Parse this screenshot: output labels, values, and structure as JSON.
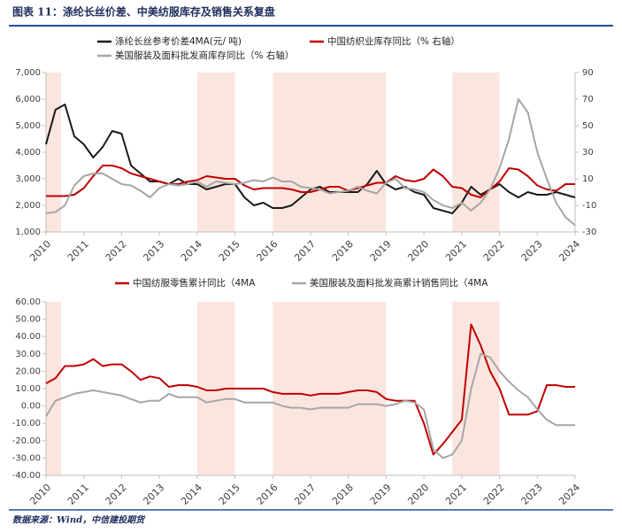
{
  "header": {
    "title": "图表 11：涤纶长丝价差、中美纺服库存及销售关系复盘"
  },
  "footer": {
    "source": "数据来源：Wind，中信建投期货"
  },
  "chart_data": [
    {
      "type": "line",
      "x": [
        2010,
        2010.25,
        2010.5,
        2010.75,
        2011,
        2011.25,
        2011.5,
        2011.75,
        2012,
        2012.25,
        2012.5,
        2012.75,
        2013,
        2013.25,
        2013.5,
        2013.75,
        2014,
        2014.25,
        2014.5,
        2014.75,
        2015,
        2015.25,
        2015.5,
        2015.75,
        2016,
        2016.25,
        2016.5,
        2016.75,
        2017,
        2017.25,
        2017.5,
        2017.75,
        2018,
        2018.25,
        2018.5,
        2018.75,
        2019,
        2019.25,
        2019.5,
        2019.75,
        2020,
        2020.25,
        2020.5,
        2020.75,
        2021,
        2021.25,
        2021.5,
        2021.75,
        2022,
        2022.25,
        2022.5,
        2022.75,
        2023,
        2023.25,
        2023.5,
        2023.75,
        2024
      ],
      "xlim": [
        2010,
        2024
      ],
      "xticks": [
        2010,
        2011,
        2012,
        2013,
        2014,
        2015,
        2016,
        2017,
        2018,
        2019,
        2020,
        2021,
        2022,
        2023,
        2024
      ],
      "ylim": [
        1000,
        7000
      ],
      "yticks": [
        {
          "value": 1000,
          "label": "1,000"
        },
        {
          "value": 2000,
          "label": "2,000"
        },
        {
          "value": 3000,
          "label": "3,000"
        },
        {
          "value": 4000,
          "label": "4,000"
        },
        {
          "value": 5000,
          "label": "5,000"
        },
        {
          "value": 6000,
          "label": "6,000"
        },
        {
          "value": 7000,
          "label": "7,000"
        }
      ],
      "y2lim": [
        -30,
        90
      ],
      "y2ticks": [
        -30,
        -10,
        10,
        30,
        50,
        70,
        90
      ],
      "shaded_ranges": [
        [
          2010,
          2010.4
        ],
        [
          2014,
          2015
        ],
        [
          2016,
          2019
        ],
        [
          2020.75,
          2022
        ]
      ],
      "shade_color": "#fbe6df",
      "series": [
        {
          "name": "涤纶长丝参考价差4MA(元/ 吨)",
          "color": "#1a1a1a",
          "values": [
            4300,
            5600,
            5800,
            4600,
            4300,
            3800,
            4200,
            4800,
            4700,
            3500,
            3200,
            2900,
            2900,
            2800,
            3000,
            2800,
            2800,
            2600,
            2700,
            2800,
            2800,
            2300,
            2000,
            2100,
            1900,
            1900,
            2000,
            2300,
            2600,
            2700,
            2500,
            2500,
            2500,
            2500,
            2800,
            3300,
            2800,
            2600,
            2700,
            2500,
            2400,
            1900,
            1800,
            1700,
            2100,
            2700,
            2400,
            2600,
            2800,
            2500,
            2300,
            2500,
            2400,
            2400,
            2500,
            2400,
            2300
          ]
        },
        {
          "name": "中国纺织业库存同比（%  右轴）",
          "color": "#c00000",
          "axis": "y2",
          "values": [
            -3,
            -3,
            -3,
            -2,
            3,
            12,
            20,
            20,
            18,
            14,
            12,
            10,
            8,
            6,
            6,
            8,
            9,
            12,
            11,
            10,
            10,
            5,
            2,
            3,
            3,
            3,
            2,
            0,
            0,
            2,
            4,
            4,
            1,
            3,
            5,
            7,
            7,
            12,
            9,
            8,
            10,
            17,
            12,
            4,
            3,
            -2,
            -4,
            2,
            8,
            18,
            17,
            12,
            5,
            2,
            1,
            6,
            6
          ]
        },
        {
          "name": "美国服装及面料批发商库存同比（%  右轴）",
          "color": "#a6a6a6",
          "axis": "y2",
          "values": [
            -16,
            -15,
            -10,
            5,
            12,
            14,
            14,
            10,
            6,
            5,
            1,
            -4,
            3,
            6,
            5,
            6,
            8,
            4,
            8,
            7,
            6,
            7,
            9,
            8,
            11,
            8,
            8,
            4,
            3,
            2,
            -1,
            0,
            1,
            4,
            1,
            -1,
            7,
            10,
            3,
            2,
            0,
            -6,
            -10,
            -12,
            -8,
            -14,
            -8,
            2,
            18,
            40,
            70,
            60,
            30,
            10,
            -8,
            -19,
            -25
          ]
        }
      ]
    },
    {
      "type": "line",
      "x": [
        2010,
        2010.25,
        2010.5,
        2010.75,
        2011,
        2011.25,
        2011.5,
        2011.75,
        2012,
        2012.25,
        2012.5,
        2012.75,
        2013,
        2013.25,
        2013.5,
        2013.75,
        2014,
        2014.25,
        2014.5,
        2014.75,
        2015,
        2015.25,
        2015.5,
        2015.75,
        2016,
        2016.25,
        2016.5,
        2016.75,
        2017,
        2017.25,
        2017.5,
        2017.75,
        2018,
        2018.25,
        2018.5,
        2018.75,
        2019,
        2019.25,
        2019.5,
        2019.75,
        2020,
        2020.25,
        2020.5,
        2020.75,
        2021,
        2021.25,
        2021.5,
        2021.75,
        2022,
        2022.25,
        2022.5,
        2022.75,
        2023,
        2023.25,
        2023.5,
        2023.75,
        2024
      ],
      "xlim": [
        2010,
        2024
      ],
      "xticks": [
        2010,
        2011,
        2012,
        2013,
        2014,
        2015,
        2016,
        2017,
        2018,
        2019,
        2020,
        2021,
        2022,
        2023,
        2024
      ],
      "ylim": [
        -40,
        60
      ],
      "yticks": [
        {
          "value": -40,
          "label": "-40.00"
        },
        {
          "value": -30,
          "label": "-30.00"
        },
        {
          "value": -20,
          "label": "-20.00"
        },
        {
          "value": -10,
          "label": "-10.00"
        },
        {
          "value": 0,
          "label": "0.00"
        },
        {
          "value": 10,
          "label": "10.00"
        },
        {
          "value": 20,
          "label": "20.00"
        },
        {
          "value": 30,
          "label": "30.00"
        },
        {
          "value": 40,
          "label": "40.00"
        },
        {
          "value": 50,
          "label": "50.00"
        },
        {
          "value": 60,
          "label": "60.00"
        }
      ],
      "shaded_ranges": [
        [
          2010,
          2010.4
        ],
        [
          2014,
          2015
        ],
        [
          2016,
          2019
        ],
        [
          2020.75,
          2022
        ]
      ],
      "shade_color": "#fbe6df",
      "series": [
        {
          "name": "中国纺服零售累计同比（4MA",
          "color": "#c00000",
          "values": [
            13,
            16,
            23,
            23,
            24,
            27,
            23,
            24,
            24,
            20,
            15,
            17,
            16,
            11,
            12,
            12,
            11,
            9,
            9,
            10,
            10,
            10,
            10,
            10,
            8,
            7,
            7,
            7,
            6,
            7,
            7,
            7,
            8,
            9,
            9,
            8,
            4,
            3,
            3,
            3,
            -10,
            -28,
            -22,
            -15,
            -8,
            47,
            35,
            20,
            10,
            -5,
            -5,
            -5,
            -3,
            12,
            12,
            11,
            11
          ]
        },
        {
          "name": "美国服装及面料批发商累计销售同比（4MA",
          "color": "#a6a6a6",
          "values": [
            -6,
            3,
            5,
            7,
            8,
            9,
            8,
            7,
            6,
            4,
            2,
            3,
            3,
            7,
            5,
            5,
            5,
            2,
            3,
            4,
            4,
            2,
            2,
            2,
            2,
            0,
            -1,
            -1,
            -2,
            -1,
            -1,
            -1,
            -1,
            1,
            1,
            1,
            0,
            1,
            3,
            2,
            -2,
            -25,
            -30,
            -28,
            -20,
            10,
            30,
            28,
            20,
            14,
            9,
            5,
            -2,
            -8,
            -11,
            -11,
            -11
          ]
        }
      ]
    }
  ]
}
